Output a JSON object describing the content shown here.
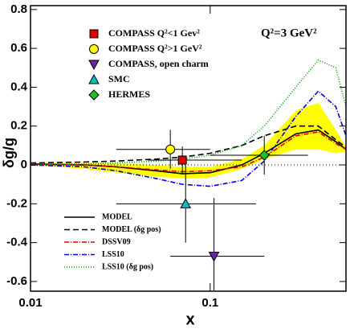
{
  "chart_data": {
    "type": "line",
    "xlabel": "x",
    "ylabel": "δg/g",
    "annotation": "Q²=3 GeV²",
    "log_x": true,
    "xlim": [
      0.01,
      0.57
    ],
    "ylim": [
      -0.65,
      0.82
    ],
    "xticks": [
      0.01,
      0.1
    ],
    "yticks": [
      -0.6,
      -0.4,
      -0.2,
      0,
      0.2,
      0.4,
      0.6,
      0.8
    ],
    "x": [
      0.01,
      0.02,
      0.03,
      0.05,
      0.07,
      0.1,
      0.15,
      0.2,
      0.3,
      0.4,
      0.5,
      0.57
    ],
    "band": {
      "color": "#ffff00",
      "lower": [
        0,
        -0.02,
        -0.04,
        -0.06,
        -0.07,
        -0.065,
        -0.02,
        0.03,
        0.08,
        0.08,
        0.06,
        0.07
      ],
      "upper": [
        0.01,
        0.01,
        0.01,
        0.0,
        -0.01,
        -0.01,
        0.03,
        0.1,
        0.28,
        0.32,
        0.18,
        0.09
      ]
    },
    "series": [
      {
        "name": "MODEL",
        "color": "#000000",
        "dash": "",
        "values": [
          0.005,
          0.0,
          -0.01,
          -0.03,
          -0.045,
          -0.04,
          0.0,
          0.06,
          0.16,
          0.18,
          0.12,
          0.08
        ]
      },
      {
        "name": "MODEL (δg pos)",
        "color": "#000000",
        "dash": "7 4",
        "values": [
          0.01,
          0.015,
          0.02,
          0.03,
          0.04,
          0.06,
          0.1,
          0.15,
          0.2,
          0.2,
          0.13,
          0.09
        ]
      },
      {
        "name": "DSSV09",
        "color": "#e00000",
        "dash": "6 2 1 2",
        "values": [
          0.005,
          0,
          -0.01,
          -0.025,
          -0.035,
          -0.03,
          -0.01,
          0.04,
          0.15,
          0.17,
          0.11,
          0.08
        ]
      },
      {
        "name": "LSS10",
        "color": "#0000dd",
        "dash": "6 2 1 2",
        "values": [
          0,
          -0.01,
          -0.03,
          -0.07,
          -0.1,
          -0.11,
          -0.08,
          0.02,
          0.25,
          0.38,
          0.3,
          0.15
        ]
      },
      {
        "name": "LSS10 (δg pos)",
        "color": "#00a000",
        "dash": "1 2",
        "values": [
          0,
          0.005,
          0.01,
          0.02,
          0.03,
          0.05,
          0.1,
          0.2,
          0.4,
          0.54,
          0.5,
          0.3
        ]
      }
    ],
    "points": [
      {
        "name": "COMPASS Q²<1 Gev²",
        "marker": "square",
        "color": "#e00000",
        "x": 0.07,
        "y": 0.025,
        "yerr": 0.07,
        "xlo": 0.045,
        "xhi": 0.15
      },
      {
        "name": "COMPASS Q²>1 GeV²",
        "marker": "circle",
        "color": "#ffff00",
        "x": 0.06,
        "y": 0.08,
        "yerr": 0.1,
        "xlo": 0.03,
        "xhi": 0.1
      },
      {
        "name": "COMPASS, open charm",
        "marker": "down",
        "color": "#7020a0",
        "x": 0.105,
        "y": -0.47,
        "yerr": 0.3,
        "xlo": 0.06,
        "xhi": 0.2
      },
      {
        "name": "SMC",
        "marker": "up",
        "color": "#00c0c0",
        "x": 0.073,
        "y": -0.2,
        "yerr": 0.2,
        "xlo": 0.03,
        "xhi": 0.18
      },
      {
        "name": "HERMES",
        "marker": "diamond",
        "color": "#20c020",
        "x": 0.2,
        "y": 0.05,
        "yerr": 0.1,
        "xlo": 0.1,
        "xhi": 0.35
      }
    ]
  }
}
